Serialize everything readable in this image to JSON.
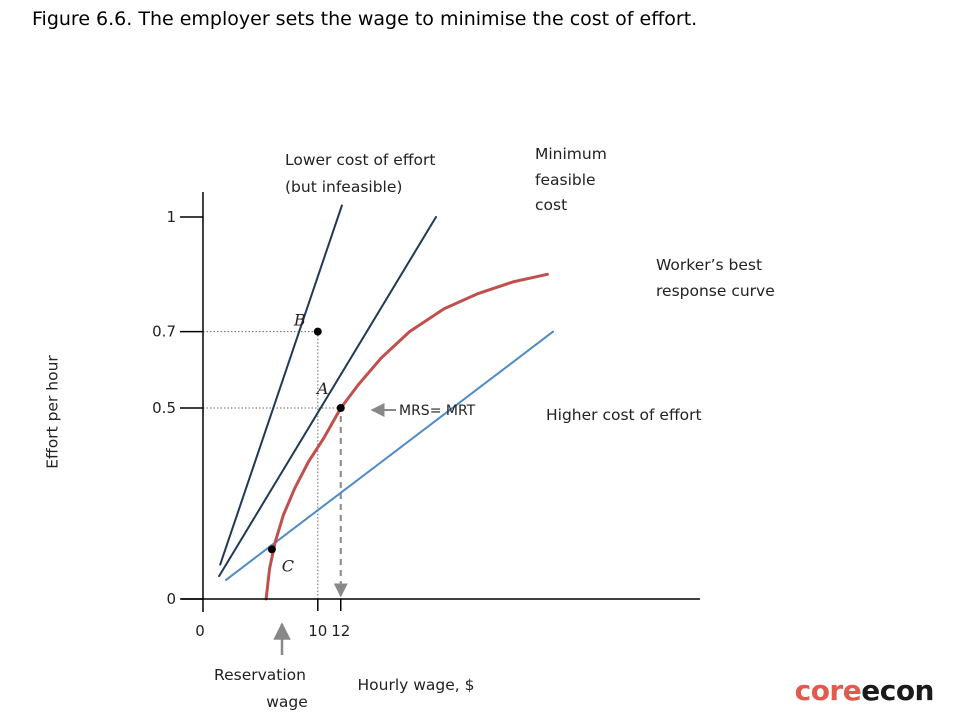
{
  "title": "Figure 6.6. The employer sets the wage to minimise the cost of effort.",
  "brand": {
    "part1": "core",
    "part2": "econ",
    "color1": "#e05a4e",
    "color2": "#1a1a1a"
  },
  "chart_data": {
    "type": "line",
    "xlabel": "Hourly wage, $",
    "ylabel": "Effort per hour",
    "x_ticks": [
      {
        "value": 0,
        "label": "0"
      },
      {
        "value": 10,
        "label": "10"
      },
      {
        "value": 12,
        "label": "12"
      }
    ],
    "y_ticks": [
      {
        "value": 0,
        "label": "0"
      },
      {
        "value": 0.5,
        "label": "0.5"
      },
      {
        "value": 0.7,
        "label": "0.7"
      },
      {
        "value": 1,
        "label": "1"
      }
    ],
    "xlim": [
      0,
      33
    ],
    "ylim": [
      0,
      1.07
    ],
    "reservation_wage": 5.5,
    "series": [
      {
        "key": "lower",
        "name": "Lower cost of effort",
        "name2": "(but infeasible)",
        "color": "#1f3a56",
        "points": [
          [
            1.5,
            0.09
          ],
          [
            12.1,
            1.03
          ]
        ]
      },
      {
        "key": "minimum",
        "name": "Minimum",
        "name2": "feasible",
        "name3": "cost",
        "color": "#1f3a56",
        "points": [
          [
            1.4,
            0.06
          ],
          [
            20.3,
            1.0
          ]
        ]
      },
      {
        "key": "higher",
        "name": "Higher cost of effort",
        "color": "#4f8ac6",
        "points": [
          [
            2.0,
            0.05
          ],
          [
            30.5,
            0.7
          ]
        ]
      },
      {
        "key": "brc",
        "name": "Worker’s best",
        "name2": "response curve",
        "color": "#c0504d",
        "points": [
          [
            5.5,
            0.0
          ],
          [
            5.8,
            0.08
          ],
          [
            6.3,
            0.15
          ],
          [
            7.0,
            0.22
          ],
          [
            8.0,
            0.29
          ],
          [
            9.2,
            0.36
          ],
          [
            10.5,
            0.42
          ],
          [
            12.0,
            0.5
          ],
          [
            13.5,
            0.56
          ],
          [
            15.5,
            0.63
          ],
          [
            18.0,
            0.7
          ],
          [
            21.0,
            0.76
          ],
          [
            24.0,
            0.8
          ],
          [
            27.0,
            0.83
          ],
          [
            30.0,
            0.85
          ]
        ]
      }
    ],
    "points": [
      {
        "label": "B",
        "x": 10,
        "y": 0.7
      },
      {
        "label": "A",
        "x": 12,
        "y": 0.5
      },
      {
        "label": "C",
        "x": 6.0,
        "y": 0.13
      }
    ],
    "annotations": {
      "mrs": "MRS= MRT",
      "reservation1": "Reservation",
      "reservation2": "wage"
    }
  }
}
